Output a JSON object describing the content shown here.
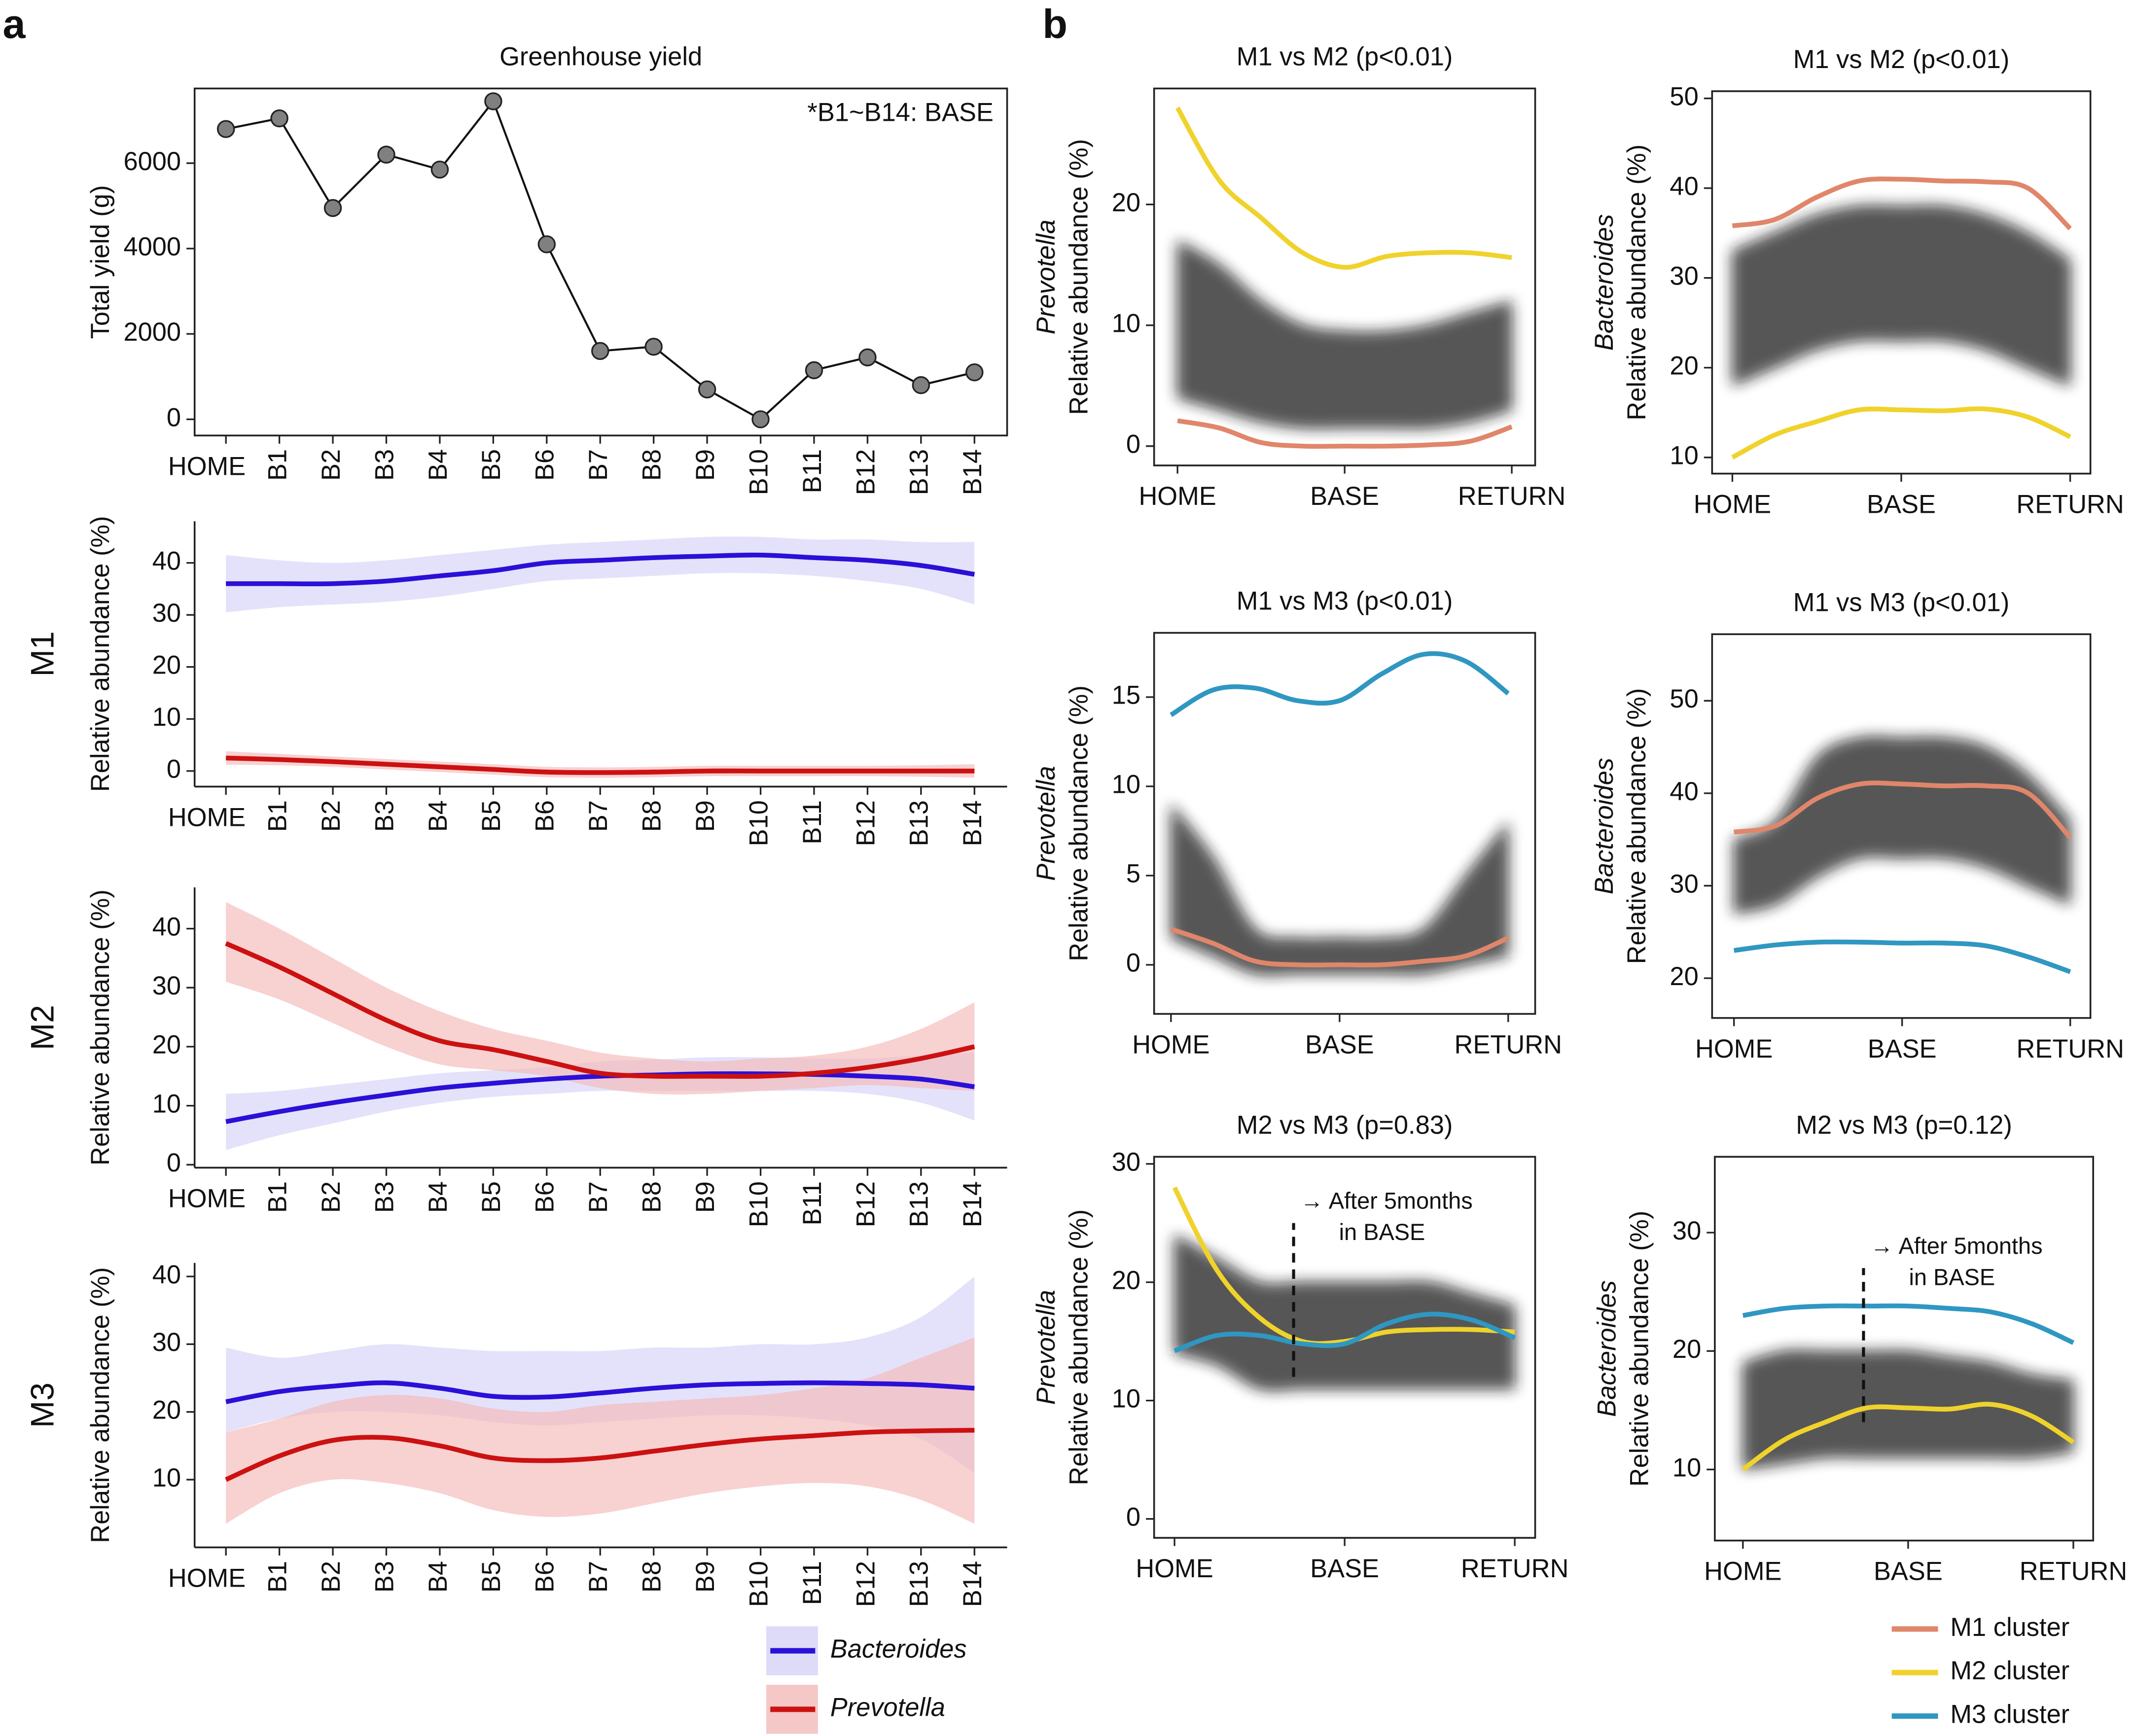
{
  "panel_labels": [
    "a",
    "b"
  ],
  "legend_b": [
    {
      "name": "M1 cluster",
      "color": "#e0866a"
    },
    {
      "name": "M2 cluster",
      "color": "#f0d22c"
    },
    {
      "name": "M3 cluster",
      "color": "#2f97c1"
    }
  ],
  "chart_data": [
    {
      "type": "line",
      "title": "Greenhouse yield",
      "annotation": "*B1~B14: BASE",
      "ylabel": "Total yield (g)",
      "categories": [
        "HOME",
        "B1",
        "B2",
        "B3",
        "B4",
        "B5",
        "B6",
        "B7",
        "B8",
        "B9",
        "B10",
        "B11",
        "B12",
        "B13",
        "B14"
      ],
      "values": [
        6800,
        7050,
        4950,
        6200,
        5850,
        7450,
        4100,
        1600,
        1700,
        700,
        0,
        1150,
        1450,
        800,
        1100
      ],
      "color": "#808080",
      "ylim": [
        -380,
        7750
      ],
      "yticks": [
        0,
        2000,
        4000,
        6000
      ]
    },
    {
      "type": "band-line",
      "title": "M1",
      "ylabel": "Relative abundance (%)",
      "categories": [
        "HOME",
        "B1",
        "B2",
        "B3",
        "B4",
        "B5",
        "B6",
        "B7",
        "B8",
        "B9",
        "B10",
        "B11",
        "B12",
        "B13",
        "B14"
      ],
      "ylim": [
        -3,
        48
      ],
      "yticks": [
        0,
        10,
        20,
        30,
        40
      ],
      "series": [
        {
          "name": "Bacteroides",
          "color": "#2a10d8",
          "band_color": "#d6d2f7",
          "values": [
            36,
            36,
            36,
            36.5,
            37.5,
            38.5,
            40,
            40.5,
            41,
            41.3,
            41.5,
            41,
            40.5,
            39.5,
            37.8
          ],
          "lower": [
            30.5,
            31.5,
            32,
            32.5,
            33.5,
            35,
            36.5,
            37,
            37.5,
            38,
            38,
            37.5,
            36.5,
            35,
            32
          ],
          "upper": [
            41.5,
            40.5,
            40,
            40.5,
            41.5,
            42.5,
            43.5,
            44,
            44.5,
            45,
            45,
            44.5,
            44.5,
            44,
            44
          ]
        },
        {
          "name": "Prevotella",
          "color": "#cc1111",
          "band_color": "#f4b9b9",
          "values": [
            2.5,
            2.2,
            1.8,
            1.3,
            0.8,
            0.3,
            -0.2,
            -0.3,
            -0.2,
            0,
            0,
            0,
            0,
            0,
            0
          ],
          "lower": [
            1.2,
            1.1,
            0.8,
            0.3,
            -0.2,
            -0.7,
            -1.2,
            -1.3,
            -1.2,
            -1,
            -1,
            -1,
            -1,
            -1.1,
            -1.3
          ],
          "upper": [
            3.8,
            3.3,
            2.8,
            2.3,
            1.8,
            1.3,
            0.8,
            0.7,
            0.8,
            1,
            1,
            1,
            1,
            1.1,
            1.3
          ]
        }
      ]
    },
    {
      "type": "band-line",
      "title": "M2",
      "ylabel": "Relative abundance (%)",
      "categories": [
        "HOME",
        "B1",
        "B2",
        "B3",
        "B4",
        "B5",
        "B6",
        "B7",
        "B8",
        "B9",
        "B10",
        "B11",
        "B12",
        "B13",
        "B14"
      ],
      "ylim": [
        -0.5,
        47
      ],
      "yticks": [
        0,
        10,
        20,
        30,
        40
      ],
      "series": [
        {
          "name": "Bacteroides",
          "color": "#2a10d8",
          "band_color": "#d6d2f7",
          "values": [
            7.3,
            9,
            10.5,
            11.8,
            13,
            13.8,
            14.5,
            15,
            15.2,
            15.4,
            15.4,
            15.3,
            15,
            14.5,
            13.2
          ],
          "lower": [
            2.5,
            5,
            7,
            9,
            10.5,
            11.5,
            12,
            12.5,
            12.5,
            12.5,
            12.5,
            12.5,
            12,
            10.5,
            7.5
          ],
          "upper": [
            12,
            12.5,
            13.5,
            14.5,
            15.5,
            16,
            16.5,
            17.5,
            17.8,
            18.2,
            18.2,
            18,
            18,
            18.5,
            19
          ]
        },
        {
          "name": "Prevotella",
          "color": "#cc1111",
          "band_color": "#f4b9b9",
          "values": [
            37.5,
            33.5,
            29,
            24.5,
            21,
            19.5,
            17.5,
            15.5,
            15,
            15,
            15,
            15.5,
            16.5,
            18,
            20
          ],
          "lower": [
            31,
            28,
            24,
            20,
            17,
            16,
            15,
            13,
            12,
            12,
            12.5,
            13,
            13.5,
            13,
            12.5
          ],
          "upper": [
            44.5,
            40,
            35,
            30,
            26,
            23,
            21,
            19,
            18,
            17.5,
            18,
            18.5,
            20,
            23,
            27.5
          ]
        }
      ]
    },
    {
      "type": "band-line",
      "title": "M3",
      "ylabel": "Relative abundance (%)",
      "categories": [
        "HOME",
        "B1",
        "B2",
        "B3",
        "B4",
        "B5",
        "B6",
        "B7",
        "B8",
        "B9",
        "B10",
        "B11",
        "B12",
        "B13",
        "B14"
      ],
      "ylim": [
        0,
        42
      ],
      "yticks": [
        10,
        20,
        30,
        40
      ],
      "series": [
        {
          "name": "Bacteroides",
          "color": "#2a10d8",
          "band_color": "#d6d2f7",
          "values": [
            21.5,
            23,
            23.8,
            24.3,
            23.5,
            22.3,
            22.2,
            22.8,
            23.5,
            24,
            24.2,
            24.3,
            24.2,
            24,
            23.5
          ],
          "lower": [
            17,
            19,
            20,
            20,
            19.5,
            18.5,
            18,
            18.5,
            19,
            19.5,
            19.5,
            19,
            18,
            16,
            11
          ],
          "upper": [
            29.5,
            28,
            29,
            30,
            29.5,
            29,
            29,
            29,
            29.5,
            29.5,
            30,
            30,
            31,
            34,
            40
          ]
        },
        {
          "name": "Prevotella",
          "color": "#cc1111",
          "band_color": "#f4b9b9",
          "values": [
            10,
            13.5,
            15.8,
            16.2,
            15,
            13.2,
            12.8,
            13.2,
            14.2,
            15.2,
            16,
            16.5,
            17,
            17.2,
            17.3
          ],
          "lower": [
            3.5,
            8,
            10,
            9.5,
            8,
            5.5,
            4.5,
            5,
            6.5,
            8,
            9,
            9.5,
            9,
            7,
            3.5
          ],
          "upper": [
            17,
            19,
            21.5,
            22.5,
            22,
            20.5,
            20,
            21,
            21.5,
            22,
            22.5,
            23.5,
            25,
            28,
            31
          ]
        }
      ]
    },
    {
      "type": "spaghetti",
      "title": "M1 vs M2 (p<0.01)",
      "ylabel_genus": "Prevotella",
      "ylabel": "Relative abundance (%)",
      "x": [
        0,
        0.25,
        0.5,
        0.75,
        1,
        1.25,
        1.5,
        1.75,
        2
      ],
      "xlim": [
        -0.14,
        2.14
      ],
      "xticks": [
        {
          "value": 0,
          "label": "HOME"
        },
        {
          "value": 1,
          "label": "BASE"
        },
        {
          "value": 2,
          "label": "RETURN"
        }
      ],
      "ylim": [
        -1.6,
        29.6
      ],
      "yticks": [
        0,
        10,
        20
      ],
      "band": {
        "color": "#222222",
        "lower": [
          4,
          3,
          2,
          1.5,
          1.5,
          1.5,
          1.5,
          2,
          3
        ],
        "upper": [
          17,
          15,
          12,
          10,
          9.5,
          9.5,
          10,
          11,
          12
        ]
      },
      "series": [
        {
          "name": "M2 cluster",
          "color": "#f0d22c",
          "values": [
            28,
            22,
            18.9,
            16,
            14.8,
            15.7,
            16,
            16,
            15.6
          ]
        },
        {
          "name": "M1 cluster",
          "color": "#e0866a",
          "values": [
            2.1,
            1.5,
            0.3,
            0,
            0,
            0,
            0.1,
            0.4,
            1.6
          ]
        }
      ]
    },
    {
      "type": "spaghetti",
      "title": "M1 vs M2 (p<0.01)",
      "ylabel_genus": "Bacteroides",
      "ylabel": "Relative abundance (%)",
      "x": [
        0,
        0.25,
        0.5,
        0.75,
        1,
        1.25,
        1.5,
        1.75,
        2
      ],
      "xlim": [
        -0.12,
        2.12
      ],
      "xticks": [
        {
          "value": 0,
          "label": "HOME"
        },
        {
          "value": 1,
          "label": "BASE"
        },
        {
          "value": 2,
          "label": "RETURN"
        }
      ],
      "ylim": [
        8.2,
        50.8
      ],
      "yticks": [
        10,
        20,
        30,
        40,
        50
      ],
      "band": {
        "color": "#222222",
        "lower": [
          18,
          20,
          22,
          23,
          23,
          23,
          22,
          20,
          18
        ],
        "upper": [
          33,
          35,
          37,
          38,
          38,
          38,
          37,
          35,
          32
        ]
      },
      "series": [
        {
          "name": "M1 cluster",
          "color": "#e0866a",
          "values": [
            35.8,
            36.5,
            39,
            40.8,
            41,
            40.8,
            40.7,
            40,
            35.5
          ]
        },
        {
          "name": "M2 cluster",
          "color": "#f0d22c",
          "values": [
            10,
            12.5,
            14,
            15.3,
            15.3,
            15.2,
            15.4,
            14.5,
            12.3
          ]
        }
      ]
    },
    {
      "type": "spaghetti",
      "title": "M1 vs M3 (p<0.01)",
      "ylabel_genus": "Prevotella",
      "ylabel": "Relative abundance (%)",
      "x": [
        0,
        0.25,
        0.5,
        0.75,
        1,
        1.25,
        1.5,
        1.75,
        2
      ],
      "xlim": [
        -0.1,
        2.16
      ],
      "xticks": [
        {
          "value": 0,
          "label": "HOME"
        },
        {
          "value": 1,
          "label": "BASE"
        },
        {
          "value": 2,
          "label": "RETURN"
        }
      ],
      "ylim": [
        -2.75,
        18.6
      ],
      "yticks": [
        0,
        5,
        10,
        15
      ],
      "band": {
        "color": "#222222",
        "lower": [
          1.5,
          0.5,
          -0.5,
          -0.5,
          -0.5,
          -0.5,
          -0.5,
          0,
          0.5
        ],
        "upper": [
          9,
          6,
          2,
          1.5,
          1.5,
          1.5,
          2,
          5,
          8
        ]
      },
      "series": [
        {
          "name": "M3 cluster",
          "color": "#2f97c1",
          "values": [
            14,
            15.4,
            15.5,
            14.8,
            14.8,
            16.3,
            17.4,
            17,
            15.2
          ]
        },
        {
          "name": "M1 cluster",
          "color": "#e0866a",
          "values": [
            2,
            1.2,
            0.2,
            0,
            0,
            0,
            0.2,
            0.5,
            1.5
          ]
        }
      ]
    },
    {
      "type": "spaghetti",
      "title": "M1 vs M3 (p<0.01)",
      "ylabel_genus": "Bacteroides",
      "ylabel": "Relative abundance (%)",
      "x": [
        0,
        0.25,
        0.5,
        0.75,
        1,
        1.25,
        1.5,
        1.75,
        2
      ],
      "xlim": [
        -0.13,
        2.12
      ],
      "xticks": [
        {
          "value": 0,
          "label": "HOME"
        },
        {
          "value": 1,
          "label": "BASE"
        },
        {
          "value": 2,
          "label": "RETURN"
        }
      ],
      "ylim": [
        15.7,
        57.2
      ],
      "yticks": [
        20,
        30,
        40,
        50
      ],
      "band": {
        "color": "#222222",
        "lower": [
          27,
          28,
          31,
          33,
          33,
          33,
          32,
          30,
          28
        ],
        "upper": [
          35,
          37,
          44,
          46,
          46,
          46,
          45,
          42,
          37
        ]
      },
      "series": [
        {
          "name": "M1 cluster",
          "color": "#e0866a",
          "values": [
            35.8,
            36.5,
            39.5,
            41,
            41,
            40.8,
            40.8,
            40,
            35.2
          ]
        },
        {
          "name": "M3 cluster",
          "color": "#2f97c1",
          "values": [
            23,
            23.6,
            23.9,
            23.9,
            23.8,
            23.8,
            23.5,
            22.3,
            20.7
          ]
        }
      ]
    },
    {
      "type": "spaghetti",
      "title": "M2 vs M3 (p=0.83)",
      "ylabel_genus": "Prevotella",
      "ylabel": "Relative abundance (%)",
      "x": [
        0,
        0.25,
        0.5,
        0.75,
        1,
        1.25,
        1.5,
        1.75,
        2
      ],
      "xlim": [
        -0.12,
        2.12
      ],
      "xticks": [
        {
          "value": 0,
          "label": "HOME"
        },
        {
          "value": 1,
          "label": "BASE"
        },
        {
          "value": 2,
          "label": "RETURN"
        }
      ],
      "ylim": [
        -1.6,
        30.6
      ],
      "yticks": [
        0,
        10,
        20,
        30
      ],
      "band": {
        "color": "#222222",
        "lower": [
          14,
          13,
          11,
          11,
          11,
          11,
          11,
          11,
          11
        ],
        "upper": [
          24,
          22,
          20,
          20,
          20,
          20,
          20,
          19,
          18
        ]
      },
      "series": [
        {
          "name": "M2 cluster",
          "color": "#f0d22c",
          "values": [
            28,
            21,
            17,
            15,
            15,
            15.8,
            16,
            16,
            15.8
          ]
        },
        {
          "name": "M3 cluster",
          "color": "#2f97c1",
          "values": [
            14.2,
            15.5,
            15.5,
            14.8,
            14.8,
            16.5,
            17.3,
            16.8,
            15.3
          ]
        }
      ],
      "annotation": {
        "lines": [
          "→ After 5months",
          "in BASE"
        ],
        "x": 0.7,
        "y": [
          12,
          25
        ]
      }
    },
    {
      "type": "spaghetti",
      "title": "M2 vs M3 (p=0.12)",
      "ylabel_genus": "Bacteroides",
      "ylabel": "Relative abundance (%)",
      "x": [
        0,
        0.25,
        0.5,
        0.75,
        1,
        1.25,
        1.5,
        1.75,
        2
      ],
      "xlim": [
        -0.17,
        2.12
      ],
      "xticks": [
        {
          "value": 0,
          "label": "HOME"
        },
        {
          "value": 1,
          "label": "BASE"
        },
        {
          "value": 2,
          "label": "RETURN"
        }
      ],
      "ylim": [
        4,
        36.4
      ],
      "yticks": [
        10,
        20,
        30
      ],
      "band": {
        "color": "#222222",
        "lower": [
          10,
          10.5,
          11,
          11,
          11,
          11,
          11,
          11,
          11.5
        ],
        "upper": [
          19,
          20,
          20,
          20,
          20,
          19.5,
          19,
          18,
          17.5
        ]
      },
      "series": [
        {
          "name": "M3 cluster",
          "color": "#2f97c1",
          "values": [
            23,
            23.6,
            23.8,
            23.8,
            23.8,
            23.6,
            23.3,
            22.3,
            20.7
          ]
        },
        {
          "name": "M2 cluster",
          "color": "#f0d22c",
          "values": [
            10,
            12.5,
            14,
            15.2,
            15.2,
            15.1,
            15.5,
            14.5,
            12.3
          ]
        }
      ],
      "annotation": {
        "lines": [
          "→ After 5months",
          "in BASE"
        ],
        "x": 0.73,
        "y": [
          14,
          27
        ]
      }
    }
  ]
}
